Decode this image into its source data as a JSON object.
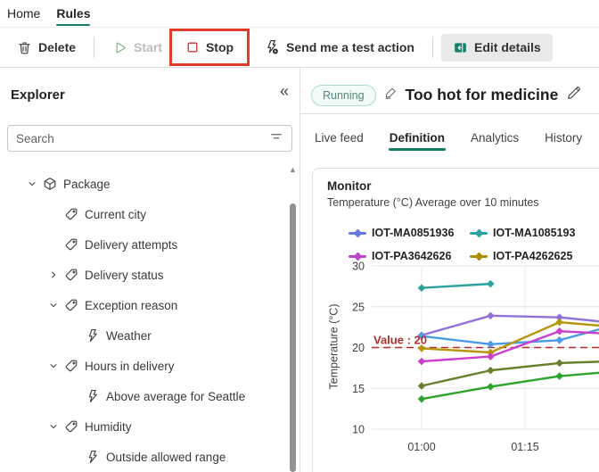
{
  "colors": {
    "accent_teal": "#137A63",
    "annotation_red": "#E13C2B",
    "stop_red": "#D13438"
  },
  "nav": {
    "items": [
      {
        "label": "Home",
        "active": false
      },
      {
        "label": "Rules",
        "active": true
      }
    ]
  },
  "toolbar": {
    "delete_label": "Delete",
    "start_label": "Start",
    "stop_label": "Stop",
    "test_action_label": "Send me a test action",
    "edit_details_label": "Edit details"
  },
  "explorer": {
    "title": "Explorer",
    "search_placeholder": "Search",
    "tree": [
      {
        "label": "Package",
        "icon": "package",
        "chevron": "down",
        "level": 0
      },
      {
        "label": "Current city",
        "icon": "tag",
        "chevron": "none",
        "level": 1
      },
      {
        "label": "Delivery attempts",
        "icon": "tag",
        "chevron": "none",
        "level": 1
      },
      {
        "label": "Delivery status",
        "icon": "tag",
        "chevron": "right",
        "level": 1
      },
      {
        "label": "Exception reason",
        "icon": "tag",
        "chevron": "down",
        "level": 1
      },
      {
        "label": "Weather",
        "icon": "bolt",
        "chevron": "none",
        "level": 2
      },
      {
        "label": "Hours in delivery",
        "icon": "tag",
        "chevron": "down",
        "level": 1
      },
      {
        "label": "Above average for Seattle",
        "icon": "bolt",
        "chevron": "none",
        "level": 2
      },
      {
        "label": "Humidity",
        "icon": "tag",
        "chevron": "down",
        "level": 1
      },
      {
        "label": "Outside allowed range",
        "icon": "bolt",
        "chevron": "none",
        "level": 2
      }
    ]
  },
  "rule": {
    "status": "Running",
    "title": "Too hot for medicine",
    "tabs": [
      {
        "label": "Live feed",
        "active": false
      },
      {
        "label": "Definition",
        "active": true
      },
      {
        "label": "Analytics",
        "active": false
      },
      {
        "label": "History",
        "active": false
      }
    ]
  },
  "monitor": {
    "title": "Monitor",
    "subtitle": "Temperature (°C) Average over 10 minutes"
  },
  "chart_data": {
    "type": "line",
    "title": "Monitor",
    "subtitle": "Temperature (°C) Average over 10 minutes",
    "ylabel": "Temperature (°C)",
    "ylim": [
      10,
      30
    ],
    "yticks": [
      10,
      15,
      20,
      25,
      30
    ],
    "xticks": [
      {
        "t": 60,
        "label": "01:00"
      },
      {
        "t": 75,
        "label": "01:15"
      }
    ],
    "grid": true,
    "legend_position": "top",
    "threshold": {
      "value": 20,
      "label": "Value : 20",
      "color": "#B02E2E"
    },
    "legend": [
      {
        "name": "IOT-MA0851936",
        "color": "#6577E0"
      },
      {
        "name": "IOT-MA1085193",
        "color": "#2AA3A0"
      },
      {
        "name": "IOT-PA3642626",
        "color": "#BB44C8"
      },
      {
        "name": "IOT-PA4262625",
        "color": "#AE8C00"
      }
    ],
    "series": [
      {
        "name": "teal",
        "color": "#2AA3A0",
        "x": [
          60,
          70
        ],
        "values": [
          27.3,
          27.8
        ]
      },
      {
        "name": "purple",
        "color": "#9470DB",
        "x": [
          60,
          70,
          80,
          87
        ],
        "values": [
          21.5,
          23.9,
          23.7,
          23.1
        ]
      },
      {
        "name": "blue",
        "color": "#4A9BE8",
        "x": [
          60,
          70,
          80,
          87
        ],
        "values": [
          21.4,
          20.4,
          20.9,
          22.5
        ]
      },
      {
        "name": "gold",
        "color": "#B8960C",
        "x": [
          60,
          70,
          80,
          87
        ],
        "values": [
          19.9,
          19.4,
          23.1,
          22.6
        ]
      },
      {
        "name": "magenta",
        "color": "#CC3ECC",
        "x": [
          60,
          70,
          80,
          87
        ],
        "values": [
          18.3,
          18.9,
          22.0,
          21.7
        ]
      },
      {
        "name": "olive",
        "color": "#67802B",
        "x": [
          60,
          70,
          80,
          87
        ],
        "values": [
          15.3,
          17.2,
          18.1,
          18.3
        ]
      },
      {
        "name": "green",
        "color": "#2DA32D",
        "x": [
          60,
          70,
          80,
          87
        ],
        "values": [
          13.7,
          15.2,
          16.5,
          17.0
        ]
      }
    ]
  }
}
